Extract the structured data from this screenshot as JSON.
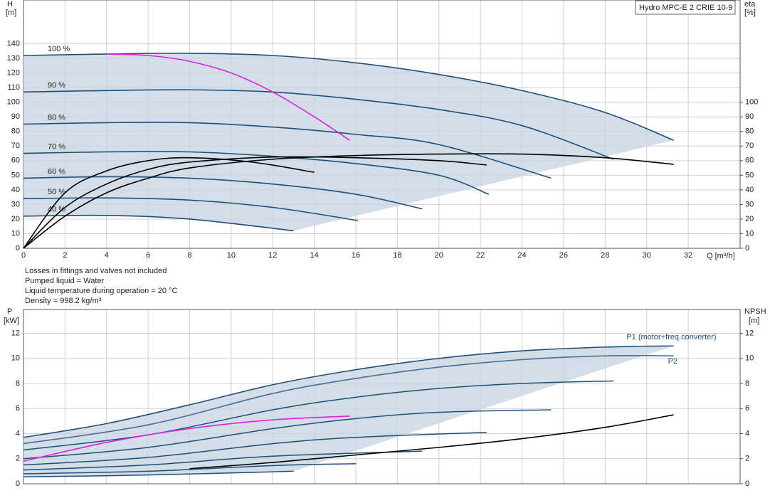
{
  "chart_data": [
    {
      "type": "line",
      "title": "Hydro MPC-E 2 CRIE 10-9",
      "ylabel": "H",
      "yunit": "[m]",
      "y2label": "eta",
      "y2unit": "[%]",
      "xlabel": "Q [m³/h]",
      "xlim": [
        0,
        34.5
      ],
      "xticks": [
        0,
        2,
        4,
        6,
        8,
        10,
        12,
        14,
        16,
        18,
        20,
        22,
        24,
        26,
        28,
        30,
        32
      ],
      "ylim": [
        0,
        170
      ],
      "yticks": [
        0,
        10,
        20,
        30,
        40,
        50,
        60,
        70,
        80,
        90,
        100,
        110,
        120,
        130,
        140
      ],
      "y2lim": [
        0,
        170
      ],
      "y2ticks": [
        0,
        10,
        20,
        30,
        40,
        50,
        60,
        70,
        80,
        90,
        100
      ],
      "grid": true,
      "series": [
        {
          "name": "100 %",
          "color": "#1f4e79",
          "x": [
            0,
            4,
            8,
            12,
            16,
            20,
            24,
            28,
            31.3
          ],
          "values": [
            132,
            133,
            133.5,
            132,
            127,
            119,
            108,
            93,
            74
          ]
        },
        {
          "name": "90 %",
          "color": "#1f4e79",
          "x": [
            0,
            4,
            8,
            12,
            16,
            20,
            24,
            28.4
          ],
          "values": [
            107,
            108,
            108.5,
            107,
            102,
            95,
            84,
            61
          ]
        },
        {
          "name": "80 %",
          "color": "#1f4e79",
          "x": [
            0,
            4,
            8,
            12,
            16,
            20,
            25.4
          ],
          "values": [
            85,
            86,
            86,
            83,
            78,
            71,
            48
          ]
        },
        {
          "name": "70 %",
          "color": "#1f4e79",
          "x": [
            0,
            4,
            8,
            12,
            16,
            20,
            22.4
          ],
          "values": [
            65,
            66,
            66,
            63,
            58,
            50,
            37
          ]
        },
        {
          "name": "60 %",
          "color": "#1f4e79",
          "x": [
            0,
            4,
            8,
            12,
            16,
            19.2
          ],
          "values": [
            48,
            49,
            48,
            44,
            37,
            27
          ]
        },
        {
          "name": "50 %",
          "color": "#1f4e79",
          "x": [
            0,
            4,
            8,
            12,
            16.1
          ],
          "values": [
            34,
            34.5,
            33,
            28,
            19
          ]
        },
        {
          "name": "40 %",
          "color": "#1f4e79",
          "x": [
            0,
            4,
            8,
            13
          ],
          "values": [
            22,
            22.5,
            20,
            12
          ]
        },
        {
          "color": "#e020e0",
          "x": [
            4,
            6,
            8,
            10,
            12,
            14,
            15.7
          ],
          "values": [
            133,
            132,
            128,
            120,
            107,
            90,
            74
          ]
        },
        {
          "color": "#000000",
          "axis": "y2",
          "x": [
            0,
            2,
            4,
            6,
            8,
            12,
            16,
            20,
            24,
            28,
            31.3
          ],
          "values": [
            0,
            22,
            38,
            48,
            55,
            61,
            63.5,
            64.5,
            64.5,
            62,
            57.5
          ]
        },
        {
          "color": "#000000",
          "axis": "y2",
          "x": [
            0,
            2,
            4,
            6,
            8,
            12,
            16,
            20,
            22.3
          ],
          "values": [
            0,
            28,
            44,
            54,
            59,
            62.5,
            62,
            60,
            57
          ]
        },
        {
          "color": "#000000",
          "axis": "y2",
          "x": [
            0,
            2,
            4,
            6,
            8,
            11,
            14
          ],
          "values": [
            0,
            38,
            53,
            60,
            62,
            59,
            52
          ]
        }
      ]
    },
    {
      "type": "line",
      "ylabel": "P",
      "yunit": "[kW]",
      "y2label": "NPSH",
      "y2unit": "[m]",
      "xlim": [
        0,
        34.5
      ],
      "xticks": [
        0,
        2,
        4,
        6,
        8,
        10,
        12,
        14,
        16,
        18,
        20,
        22,
        24,
        26,
        28,
        30,
        32
      ],
      "ylim": [
        0,
        13.9
      ],
      "yticks": [
        0,
        2,
        4,
        6,
        8,
        10,
        12
      ],
      "y2lim": [
        0,
        13.9
      ],
      "y2ticks": [
        0,
        2,
        4,
        6,
        8,
        10,
        12
      ],
      "grid": true,
      "series": [
        {
          "name": "P1 (motor+freq.converter)",
          "color": "#1f4e79",
          "x": [
            0,
            4,
            8,
            12,
            16,
            20,
            24,
            28,
            31.3
          ],
          "values": [
            3.7,
            4.8,
            6.3,
            7.9,
            9.1,
            10,
            10.6,
            10.9,
            11
          ]
        },
        {
          "name": "P2",
          "color": "#4a6f96",
          "x": [
            0,
            6,
            12,
            16,
            20,
            24,
            28,
            31.3
          ],
          "values": [
            3.2,
            4.7,
            7.2,
            8.4,
            9.3,
            9.9,
            10.2,
            10.2
          ]
        },
        {
          "color": "#1f4e79",
          "x": [
            0,
            6,
            12,
            16,
            20,
            24,
            28.4
          ],
          "values": [
            2.7,
            3.9,
            5.9,
            6.9,
            7.6,
            8,
            8.2
          ]
        },
        {
          "color": "#1f4e79",
          "x": [
            0,
            6,
            12,
            16,
            20,
            25.4
          ],
          "values": [
            2,
            2.9,
            4.4,
            5.2,
            5.7,
            5.9
          ]
        },
        {
          "color": "#1f4e79",
          "x": [
            0,
            6,
            12,
            16,
            22.3
          ],
          "values": [
            1.5,
            2.1,
            3.2,
            3.7,
            4.1
          ]
        },
        {
          "color": "#1f4e79",
          "x": [
            0,
            6,
            12,
            19.2
          ],
          "values": [
            1.1,
            1.5,
            2.2,
            2.6
          ]
        },
        {
          "color": "#1f4e79",
          "x": [
            0,
            6,
            12,
            16
          ],
          "values": [
            0.8,
            1,
            1.45,
            1.6
          ]
        },
        {
          "color": "#1f4e79",
          "x": [
            0,
            6,
            13
          ],
          "values": [
            0.55,
            0.7,
            1
          ]
        },
        {
          "color": "#e020e0",
          "x": [
            0,
            4,
            8,
            12,
            15.7
          ],
          "values": [
            1.8,
            3.3,
            4.4,
            5.1,
            5.4
          ]
        },
        {
          "color": "#000000",
          "axis": "y2",
          "x": [
            8,
            12,
            16,
            20,
            24,
            28,
            31.3
          ],
          "values": [
            1.2,
            1.7,
            2.3,
            2.9,
            3.6,
            4.5,
            5.5
          ]
        }
      ]
    }
  ],
  "notes": [
    "Losses in fittings and valves not included",
    "Pumped liquid = Water",
    "Liquid temperature during operation = 20 °C",
    "Density = 998.2 kg/m³"
  ]
}
